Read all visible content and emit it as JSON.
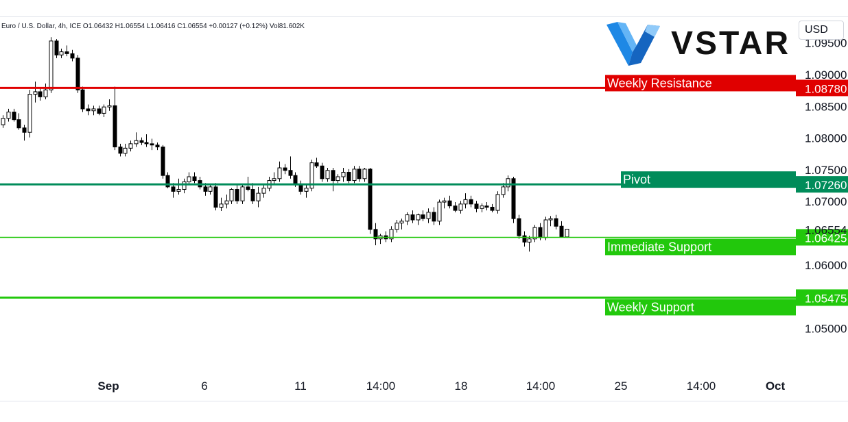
{
  "header": {
    "info": "Euro / U.S. Dollar, 4h, ICE  O1.06432  H1.06554  L1.06416  C1.06554  +0.00127 (+0.12%)  Vol81.602K"
  },
  "currency": "USD",
  "logo": {
    "text": "VSTAR",
    "color": "#2196f3"
  },
  "chart_data": {
    "type": "candlestick",
    "symbol": "Euro / U.S. Dollar",
    "interval": "4h",
    "exchange": "ICE",
    "ohlc_summary": {
      "open": 1.06432,
      "high": 1.06554,
      "low": 1.06416,
      "close": 1.06554,
      "change": "+0.00127 (+0.12%)",
      "volume": "81.602K"
    },
    "ylim": [
      1.0494,
      1.0988
    ],
    "yticks": [
      "1.09000",
      "1.08500",
      "1.08000",
      "1.07500",
      "1.07000",
      "1.06000",
      "1.05000"
    ],
    "partial_tick": "1.09500",
    "last_price_label": "1.06554",
    "last_price": 1.06554,
    "xticks": [
      "Sep",
      "6",
      "11",
      "14:00",
      "18",
      "14:00",
      "25",
      "14:00",
      "Oct"
    ],
    "levels": [
      {
        "name": "Weekly Resistance",
        "value": 1.0878,
        "label": "1.08780",
        "color": "#e00000"
      },
      {
        "name": "Pivot",
        "value": 1.0726,
        "label": "1.07260",
        "color": "#008c5a"
      },
      {
        "name": "Immediate Support",
        "value": 1.06425,
        "label": "1.06425",
        "color": "#22c80c"
      },
      {
        "name": "Weekly Support",
        "value": 1.05475,
        "label": "1.05475",
        "color": "#22c80c"
      }
    ],
    "candles": [
      [
        1.082,
        1.0835,
        1.0815,
        1.083
      ],
      [
        1.083,
        1.0845,
        1.0825,
        1.084
      ],
      [
        1.084,
        1.0845,
        1.0825,
        1.0828
      ],
      [
        1.0828,
        1.0838,
        1.0812,
        1.0815
      ],
      [
        1.0815,
        1.082,
        1.0795,
        1.0808
      ],
      [
        1.0808,
        1.0875,
        1.08,
        1.0868
      ],
      [
        1.0868,
        1.0888,
        1.0855,
        1.0872
      ],
      [
        1.0872,
        1.0878,
        1.0858,
        1.0864
      ],
      [
        1.0864,
        1.0885,
        1.086,
        1.0875
      ],
      [
        1.0875,
        1.0958,
        1.087,
        1.0952
      ],
      [
        1.0952,
        1.0955,
        1.0925,
        1.093
      ],
      [
        1.093,
        1.094,
        1.0925,
        1.0935
      ],
      [
        1.0935,
        1.0945,
        1.0928,
        1.0932
      ],
      [
        1.0932,
        1.0938,
        1.092,
        1.0925
      ],
      [
        1.0925,
        1.093,
        1.087,
        1.0875
      ],
      [
        1.0875,
        1.088,
        1.084,
        1.0845
      ],
      [
        1.0845,
        1.0852,
        1.0835,
        1.0842
      ],
      [
        1.0842,
        1.085,
        1.0835,
        1.0845
      ],
      [
        1.0845,
        1.085,
        1.0835,
        1.0838
      ],
      [
        1.0838,
        1.0852,
        1.0832,
        1.0848
      ],
      [
        1.0848,
        1.086,
        1.0842,
        1.085
      ],
      [
        1.085,
        1.088,
        1.078,
        1.0785
      ],
      [
        1.0785,
        1.079,
        1.077,
        1.0775
      ],
      [
        1.0775,
        1.079,
        1.077,
        1.0783
      ],
      [
        1.0783,
        1.0795,
        1.0778,
        1.079
      ],
      [
        1.079,
        1.0808,
        1.0785,
        1.0795
      ],
      [
        1.0795,
        1.08,
        1.0788,
        1.0792
      ],
      [
        1.0792,
        1.0805,
        1.0785,
        1.079
      ],
      [
        1.079,
        1.0798,
        1.078,
        1.0788
      ],
      [
        1.0788,
        1.0792,
        1.078,
        1.0785
      ],
      [
        1.0785,
        1.0788,
        1.0735,
        1.074
      ],
      [
        1.074,
        1.0745,
        1.072,
        1.0722
      ],
      [
        1.0722,
        1.0728,
        1.0705,
        1.0715
      ],
      [
        1.0715,
        1.0735,
        1.071,
        1.0718
      ],
      [
        1.0718,
        1.0735,
        1.0712,
        1.073
      ],
      [
        1.073,
        1.0745,
        1.0725,
        1.0738
      ],
      [
        1.0738,
        1.0745,
        1.0728,
        1.0732
      ],
      [
        1.0732,
        1.0738,
        1.0718,
        1.0722
      ],
      [
        1.0722,
        1.0728,
        1.0708,
        1.0715
      ],
      [
        1.0715,
        1.0725,
        1.071,
        1.0722
      ],
      [
        1.0722,
        1.0728,
        1.0685,
        1.069
      ],
      [
        1.069,
        1.0705,
        1.0684,
        1.0695
      ],
      [
        1.0695,
        1.071,
        1.0688,
        1.07
      ],
      [
        1.07,
        1.072,
        1.0695,
        1.0718
      ],
      [
        1.0718,
        1.0725,
        1.0695,
        1.07
      ],
      [
        1.07,
        1.0725,
        1.0695,
        1.0722
      ],
      [
        1.0722,
        1.0738,
        1.0715,
        1.0718
      ],
      [
        1.0718,
        1.0728,
        1.0695,
        1.07
      ],
      [
        1.07,
        1.0722,
        1.069,
        1.0712
      ],
      [
        1.0712,
        1.0725,
        1.0705,
        1.072
      ],
      [
        1.072,
        1.0738,
        1.0715,
        1.0732
      ],
      [
        1.0732,
        1.0745,
        1.0725,
        1.0735
      ],
      [
        1.0735,
        1.0762,
        1.073,
        1.0752
      ],
      [
        1.0752,
        1.0758,
        1.0742,
        1.0748
      ],
      [
        1.0748,
        1.077,
        1.0735,
        1.074
      ],
      [
        1.074,
        1.0745,
        1.0722,
        1.0725
      ],
      [
        1.0725,
        1.0732,
        1.071,
        1.0715
      ],
      [
        1.0715,
        1.0725,
        1.0705,
        1.072
      ],
      [
        1.072,
        1.0765,
        1.0715,
        1.076
      ],
      [
        1.076,
        1.0768,
        1.0752,
        1.0755
      ],
      [
        1.0755,
        1.076,
        1.073,
        1.0735
      ],
      [
        1.0735,
        1.0752,
        1.073,
        1.0748
      ],
      [
        1.0748,
        1.0752,
        1.0715,
        1.0732
      ],
      [
        1.0732,
        1.0742,
        1.0728,
        1.0738
      ],
      [
        1.0738,
        1.0752,
        1.073,
        1.0745
      ],
      [
        1.0745,
        1.075,
        1.0728,
        1.0732
      ],
      [
        1.0732,
        1.0755,
        1.0728,
        1.075
      ],
      [
        1.075,
        1.0755,
        1.073,
        1.0735
      ],
      [
        1.0735,
        1.0752,
        1.073,
        1.075
      ],
      [
        1.075,
        1.0752,
        1.0648,
        1.0655
      ],
      [
        1.0655,
        1.0665,
        1.063,
        1.064
      ],
      [
        1.064,
        1.0648,
        1.0632,
        1.0645
      ],
      [
        1.0645,
        1.0652,
        1.0635,
        1.064
      ],
      [
        1.064,
        1.066,
        1.0635,
        1.0655
      ],
      [
        1.0655,
        1.067,
        1.065,
        1.0665
      ],
      [
        1.0665,
        1.0672,
        1.0655,
        1.0668
      ],
      [
        1.0668,
        1.0682,
        1.0662,
        1.0678
      ],
      [
        1.0678,
        1.0685,
        1.0665,
        1.067
      ],
      [
        1.067,
        1.068,
        1.0662,
        1.0678
      ],
      [
        1.0678,
        1.0685,
        1.0668,
        1.0672
      ],
      [
        1.0672,
        1.0688,
        1.0665,
        1.0682
      ],
      [
        1.0682,
        1.069,
        1.0662,
        1.0668
      ],
      [
        1.0668,
        1.0702,
        1.0662,
        1.0698
      ],
      [
        1.0698,
        1.0705,
        1.0688,
        1.07
      ],
      [
        1.07,
        1.0708,
        1.0688,
        1.0692
      ],
      [
        1.0692,
        1.0698,
        1.0682,
        1.0685
      ],
      [
        1.0685,
        1.07,
        1.068,
        1.0695
      ],
      [
        1.0695,
        1.0712,
        1.0688,
        1.0702
      ],
      [
        1.0702,
        1.0708,
        1.069,
        1.0695
      ],
      [
        1.0695,
        1.07,
        1.0682,
        1.0688
      ],
      [
        1.0688,
        1.0696,
        1.0682,
        1.0692
      ],
      [
        1.0692,
        1.0698,
        1.0685,
        1.069
      ],
      [
        1.069,
        1.0695,
        1.0682,
        1.0685
      ],
      [
        1.0685,
        1.0715,
        1.068,
        1.071
      ],
      [
        1.071,
        1.0728,
        1.0705,
        1.0722
      ],
      [
        1.0722,
        1.074,
        1.0715,
        1.0735
      ],
      [
        1.0735,
        1.0738,
        1.0665,
        1.0672
      ],
      [
        1.0672,
        1.0678,
        1.064,
        1.0645
      ],
      [
        1.0645,
        1.0652,
        1.0628,
        1.0635
      ],
      [
        1.0635,
        1.0645,
        1.062,
        1.064
      ],
      [
        1.064,
        1.0662,
        1.0635,
        1.0658
      ],
      [
        1.0658,
        1.0665,
        1.0638,
        1.0642
      ],
      [
        1.0642,
        1.0675,
        1.0638,
        1.067
      ],
      [
        1.067,
        1.0676,
        1.066,
        1.0672
      ],
      [
        1.0672,
        1.0678,
        1.0655,
        1.066
      ],
      [
        1.066,
        1.0668,
        1.0642,
        1.0643
      ],
      [
        1.06432,
        1.06554,
        1.06416,
        1.06554
      ]
    ]
  }
}
